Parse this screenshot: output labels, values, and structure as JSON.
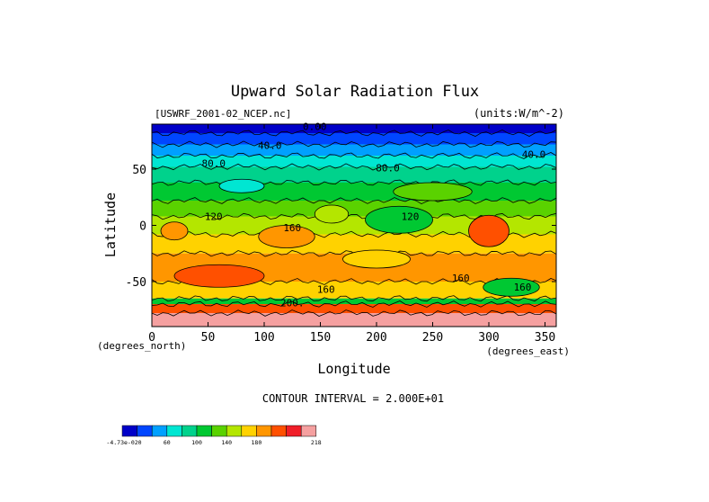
{
  "chart_data": {
    "type": "heatmap",
    "title": "Upward Solar Radiation Flux",
    "file_label": "[USWRF_2001-02_NCEP.nc]",
    "units_label": "(units:W/m^-2)",
    "xlabel": "Longitude",
    "ylabel": "Latitude",
    "x_unit_note": "(degrees_east)",
    "y_unit_note": "(degrees_north)",
    "xlim": [
      0,
      360
    ],
    "ylim": [
      -90,
      90
    ],
    "x_ticks": [
      0,
      50,
      100,
      150,
      200,
      250,
      300,
      350
    ],
    "y_ticks": [
      50,
      0,
      -50
    ],
    "contour_interval_text": "CONTOUR INTERVAL = 2.000E+01",
    "contour_labels": [
      "0.00",
      "40.0",
      "40.0",
      "80.0",
      "80.0",
      "120",
      "120",
      "160",
      "160",
      "160",
      "160",
      "200."
    ],
    "legend": {
      "colors": [
        "#0000c8",
        "#0046ff",
        "#00a0ff",
        "#00e6d2",
        "#00d28c",
        "#00c832",
        "#5ad200",
        "#b4e600",
        "#ffd200",
        "#ff9600",
        "#ff5000",
        "#f01e28",
        "#f5a0a0"
      ],
      "tick_labels": [
        "-4.73e-020",
        "60",
        "100",
        "140",
        "180",
        "218"
      ],
      "tick_index": [
        0,
        3,
        5,
        7,
        9,
        12
      ]
    },
    "latitude_bands": [
      {
        "lat_from": 90,
        "lat_to": 82,
        "value": 0
      },
      {
        "lat_from": 82,
        "lat_to": 72,
        "value": 20
      },
      {
        "lat_from": 72,
        "lat_to": 62,
        "value": 40
      },
      {
        "lat_from": 62,
        "lat_to": 52,
        "value": 60
      },
      {
        "lat_from": 52,
        "lat_to": 38,
        "value": 80
      },
      {
        "lat_from": 38,
        "lat_to": 22,
        "value": 100
      },
      {
        "lat_from": 22,
        "lat_to": 8,
        "value": 120
      },
      {
        "lat_from": 8,
        "lat_to": -8,
        "value": 140
      },
      {
        "lat_from": -8,
        "lat_to": -25,
        "value": 160
      },
      {
        "lat_from": -25,
        "lat_to": -50,
        "value": 180
      },
      {
        "lat_from": -50,
        "lat_to": -65,
        "value": 160
      },
      {
        "lat_from": -65,
        "lat_to": -70,
        "value": 100
      },
      {
        "lat_from": -70,
        "lat_to": -78,
        "value": 200
      },
      {
        "lat_from": -78,
        "lat_to": -90,
        "value": 218
      }
    ],
    "features": [
      {
        "lon": 300,
        "lat": -5,
        "rx": 18,
        "ry": 14,
        "value": 200
      },
      {
        "lon": 20,
        "lat": -5,
        "rx": 12,
        "ry": 8,
        "value": 180
      },
      {
        "lon": 120,
        "lat": -10,
        "rx": 25,
        "ry": 10,
        "value": 180
      },
      {
        "lon": 60,
        "lat": -45,
        "rx": 40,
        "ry": 10,
        "value": 200
      },
      {
        "lon": 220,
        "lat": 5,
        "rx": 30,
        "ry": 12,
        "value": 100
      },
      {
        "lon": 160,
        "lat": 10,
        "rx": 15,
        "ry": 8,
        "value": 140
      },
      {
        "lon": 320,
        "lat": -55,
        "rx": 25,
        "ry": 8,
        "value": 100
      },
      {
        "lon": 80,
        "lat": 35,
        "rx": 20,
        "ry": 6,
        "value": 60
      },
      {
        "lon": 250,
        "lat": 30,
        "rx": 35,
        "ry": 8,
        "value": 120
      },
      {
        "lon": 200,
        "lat": -30,
        "rx": 30,
        "ry": 8,
        "value": 160
      }
    ]
  }
}
